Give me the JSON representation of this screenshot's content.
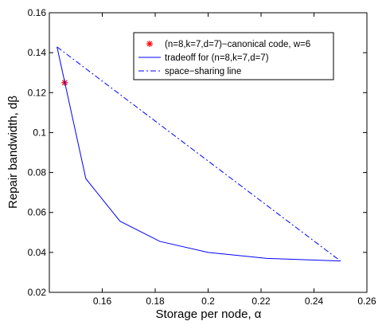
{
  "chart_data": {
    "type": "line",
    "title": "",
    "xlabel": "Storage per node, α",
    "ylabel": "Repair bandwidth, dβ",
    "xlim": [
      0.14,
      0.26
    ],
    "ylim": [
      0.02,
      0.16
    ],
    "x_ticks": [
      0.16,
      0.18,
      0.2,
      0.22,
      0.24,
      0.26
    ],
    "x_tick_labels": [
      "0.16",
      "0.18",
      "0.2",
      "0.22",
      "0.24",
      "0.26"
    ],
    "y_ticks": [
      0.02,
      0.04,
      0.06,
      0.08,
      0.1,
      0.12,
      0.14,
      0.16
    ],
    "y_tick_labels": [
      "0.02",
      "0.04",
      "0.06",
      "0.08",
      "0.1",
      "0.12",
      "0.14",
      "0.16"
    ],
    "grid": false,
    "legend_position": "top-right",
    "series": [
      {
        "name": "(n=8,k=7,d=7)−canonical code, w=6",
        "kind": "marker",
        "marker": "asterisk",
        "color": "#ff0000",
        "x": [
          0.1458
        ],
        "y": [
          0.125
        ]
      },
      {
        "name": "tradeoff for (n=8,k=7,d=7)",
        "kind": "line",
        "style": "solid",
        "color": "#0000ff",
        "x": [
          0.1429,
          0.1538,
          0.1667,
          0.1818,
          0.2,
          0.2222,
          0.25
        ],
        "y": [
          0.1429,
          0.0769,
          0.0556,
          0.0455,
          0.04,
          0.037,
          0.0357
        ]
      },
      {
        "name": "space−sharing line",
        "kind": "line",
        "style": "dashdot",
        "color": "#0000ff",
        "x": [
          0.1429,
          0.25
        ],
        "y": [
          0.1429,
          0.0357
        ]
      }
    ]
  }
}
